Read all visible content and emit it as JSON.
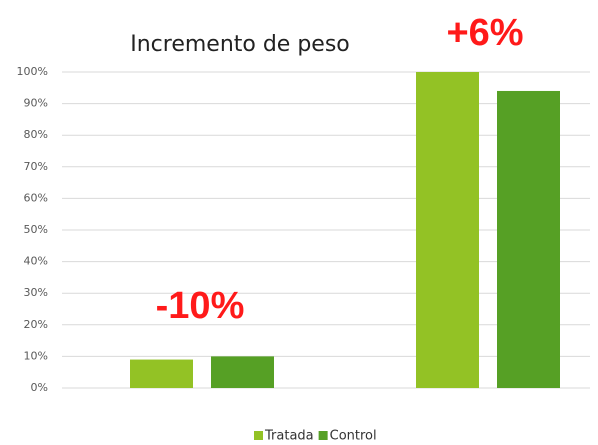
{
  "chart_data": {
    "type": "bar",
    "title": "Incremento de peso",
    "categories": [
      null,
      null
    ],
    "series": [
      {
        "name": "Tratada",
        "color": "#93c225",
        "values": [
          9,
          100
        ]
      },
      {
        "name": "Control",
        "color": "#56a025",
        "values": [
          10,
          94
        ]
      }
    ],
    "ylim": [
      0,
      100
    ],
    "yticks": [
      {
        "value": 0,
        "label": "0%"
      },
      {
        "value": 10,
        "label": "10%"
      },
      {
        "value": 20,
        "label": "20%"
      },
      {
        "value": 30,
        "label": "30%"
      },
      {
        "value": 40,
        "label": "40%"
      },
      {
        "value": 50,
        "label": "50%"
      },
      {
        "value": 60,
        "label": "60%"
      },
      {
        "value": 70,
        "label": "70%"
      },
      {
        "value": 80,
        "label": "80%"
      },
      {
        "value": 90,
        "label": "90%"
      },
      {
        "value": 100,
        "label": "100%"
      }
    ],
    "grid": true,
    "annotations": [
      "-10%",
      "+6%"
    ],
    "legend": "bottom"
  }
}
